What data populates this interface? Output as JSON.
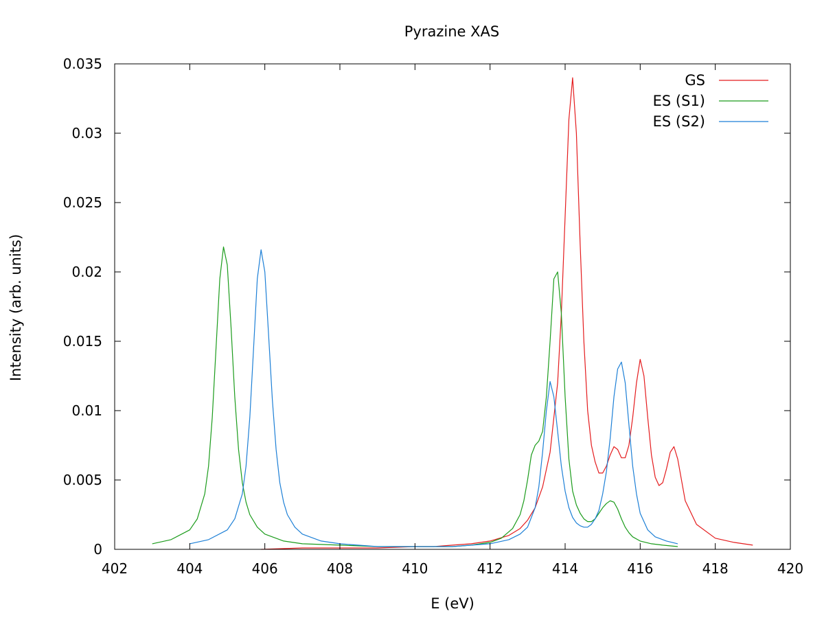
{
  "chart_data": {
    "type": "line",
    "title": "Pyrazine XAS",
    "xlabel": "E (eV)",
    "ylabel": "Intensity (arb. units)",
    "xlim": [
      402,
      420
    ],
    "ylim": [
      0,
      0.035
    ],
    "xticks": [
      402,
      404,
      406,
      408,
      410,
      412,
      414,
      416,
      418,
      420
    ],
    "xtick_labels": [
      "402",
      "404",
      "406",
      "408",
      "410",
      "412",
      "414",
      "416",
      "418",
      "420"
    ],
    "yticks": [
      0,
      0.005,
      0.01,
      0.015,
      0.02,
      0.025,
      0.03,
      0.035
    ],
    "ytick_labels": [
      "0",
      "0.005",
      "0.01",
      "0.015",
      "0.02",
      "0.025",
      "0.03",
      "0.035"
    ],
    "grid": false,
    "legend_position": "top-right",
    "series": [
      {
        "name": "GS",
        "color": "#e41a1c",
        "x": [
          405.9,
          407,
          408,
          409,
          410,
          410.5,
          411,
          411.5,
          412,
          412.5,
          412.8,
          413,
          413.2,
          413.4,
          413.6,
          413.8,
          413.9,
          414,
          414.1,
          414.2,
          414.3,
          414.4,
          414.5,
          414.6,
          414.7,
          414.8,
          414.9,
          415,
          415.1,
          415.2,
          415.3,
          415.4,
          415.5,
          415.6,
          415.7,
          415.8,
          415.9,
          416,
          416.1,
          416.2,
          416.3,
          416.4,
          416.5,
          416.6,
          416.7,
          416.8,
          416.9,
          417,
          417.2,
          417.5,
          418,
          418.5,
          419
        ],
        "y": [
          0.0,
          0.0001,
          0.0001,
          0.0001,
          0.0002,
          0.0002,
          0.0003,
          0.0004,
          0.0006,
          0.001,
          0.0015,
          0.0021,
          0.003,
          0.0045,
          0.007,
          0.012,
          0.017,
          0.024,
          0.031,
          0.034,
          0.03,
          0.022,
          0.015,
          0.01,
          0.0075,
          0.0063,
          0.0055,
          0.0055,
          0.006,
          0.0068,
          0.0074,
          0.0072,
          0.0066,
          0.0066,
          0.0075,
          0.0095,
          0.012,
          0.0137,
          0.0125,
          0.0095,
          0.0068,
          0.0052,
          0.0046,
          0.0048,
          0.0058,
          0.007,
          0.0074,
          0.0065,
          0.0035,
          0.0018,
          0.0008,
          0.0005,
          0.0003
        ]
      },
      {
        "name": "ES (S1)",
        "color": "#1a9b1a",
        "x": [
          403,
          403.5,
          404,
          404.2,
          404.4,
          404.5,
          404.6,
          404.7,
          404.8,
          404.9,
          405,
          405.1,
          405.2,
          405.3,
          405.4,
          405.5,
          405.6,
          405.8,
          406,
          406.5,
          407,
          408,
          409,
          410,
          411,
          411.5,
          412,
          412.3,
          412.6,
          412.8,
          412.9,
          413,
          413.1,
          413.2,
          413.3,
          413.4,
          413.5,
          413.6,
          413.7,
          413.8,
          413.9,
          414,
          414.1,
          414.2,
          414.3,
          414.4,
          414.5,
          414.6,
          414.7,
          414.8,
          414.9,
          415,
          415.1,
          415.2,
          415.3,
          415.4,
          415.5,
          415.6,
          415.7,
          415.8,
          416,
          416.3,
          416.6,
          417
        ],
        "y": [
          0.0004,
          0.0007,
          0.0014,
          0.0022,
          0.004,
          0.006,
          0.0095,
          0.0145,
          0.0195,
          0.0218,
          0.0205,
          0.016,
          0.011,
          0.0072,
          0.0048,
          0.0034,
          0.0025,
          0.0016,
          0.0011,
          0.0006,
          0.0004,
          0.0003,
          0.0002,
          0.0002,
          0.0002,
          0.0003,
          0.0005,
          0.0008,
          0.0015,
          0.0025,
          0.0035,
          0.005,
          0.0068,
          0.0075,
          0.0078,
          0.0085,
          0.011,
          0.015,
          0.0195,
          0.02,
          0.017,
          0.011,
          0.0065,
          0.0042,
          0.0032,
          0.0026,
          0.0022,
          0.002,
          0.002,
          0.0022,
          0.0026,
          0.003,
          0.0033,
          0.0035,
          0.0034,
          0.0029,
          0.0022,
          0.0016,
          0.0012,
          0.0009,
          0.0006,
          0.0004,
          0.0003,
          0.0002
        ]
      },
      {
        "name": "ES (S2)",
        "color": "#1c7fd6",
        "x": [
          404,
          404.5,
          405,
          405.2,
          405.4,
          405.5,
          405.6,
          405.7,
          405.8,
          405.9,
          406,
          406.1,
          406.2,
          406.3,
          406.4,
          406.5,
          406.6,
          406.8,
          407,
          407.5,
          408,
          409,
          410,
          411,
          412,
          412.5,
          412.8,
          413,
          413.2,
          413.3,
          413.4,
          413.5,
          413.6,
          413.7,
          413.8,
          413.9,
          414,
          414.1,
          414.2,
          414.3,
          414.4,
          414.5,
          414.6,
          414.7,
          414.8,
          414.9,
          415,
          415.1,
          415.2,
          415.3,
          415.4,
          415.5,
          415.6,
          415.7,
          415.8,
          415.9,
          416,
          416.2,
          416.4,
          416.7,
          417
        ],
        "y": [
          0.0004,
          0.0007,
          0.0014,
          0.0022,
          0.004,
          0.006,
          0.0095,
          0.0145,
          0.0195,
          0.0216,
          0.02,
          0.0155,
          0.0108,
          0.0072,
          0.0048,
          0.0034,
          0.0025,
          0.0016,
          0.0011,
          0.0006,
          0.0004,
          0.0002,
          0.0002,
          0.0002,
          0.0004,
          0.0007,
          0.0011,
          0.0016,
          0.003,
          0.0045,
          0.007,
          0.01,
          0.0121,
          0.011,
          0.0085,
          0.006,
          0.0042,
          0.003,
          0.0023,
          0.0019,
          0.0017,
          0.0016,
          0.0016,
          0.0018,
          0.0022,
          0.0028,
          0.004,
          0.0056,
          0.008,
          0.011,
          0.013,
          0.0135,
          0.012,
          0.009,
          0.006,
          0.004,
          0.0026,
          0.0014,
          0.0009,
          0.0006,
          0.0004
        ]
      }
    ]
  }
}
